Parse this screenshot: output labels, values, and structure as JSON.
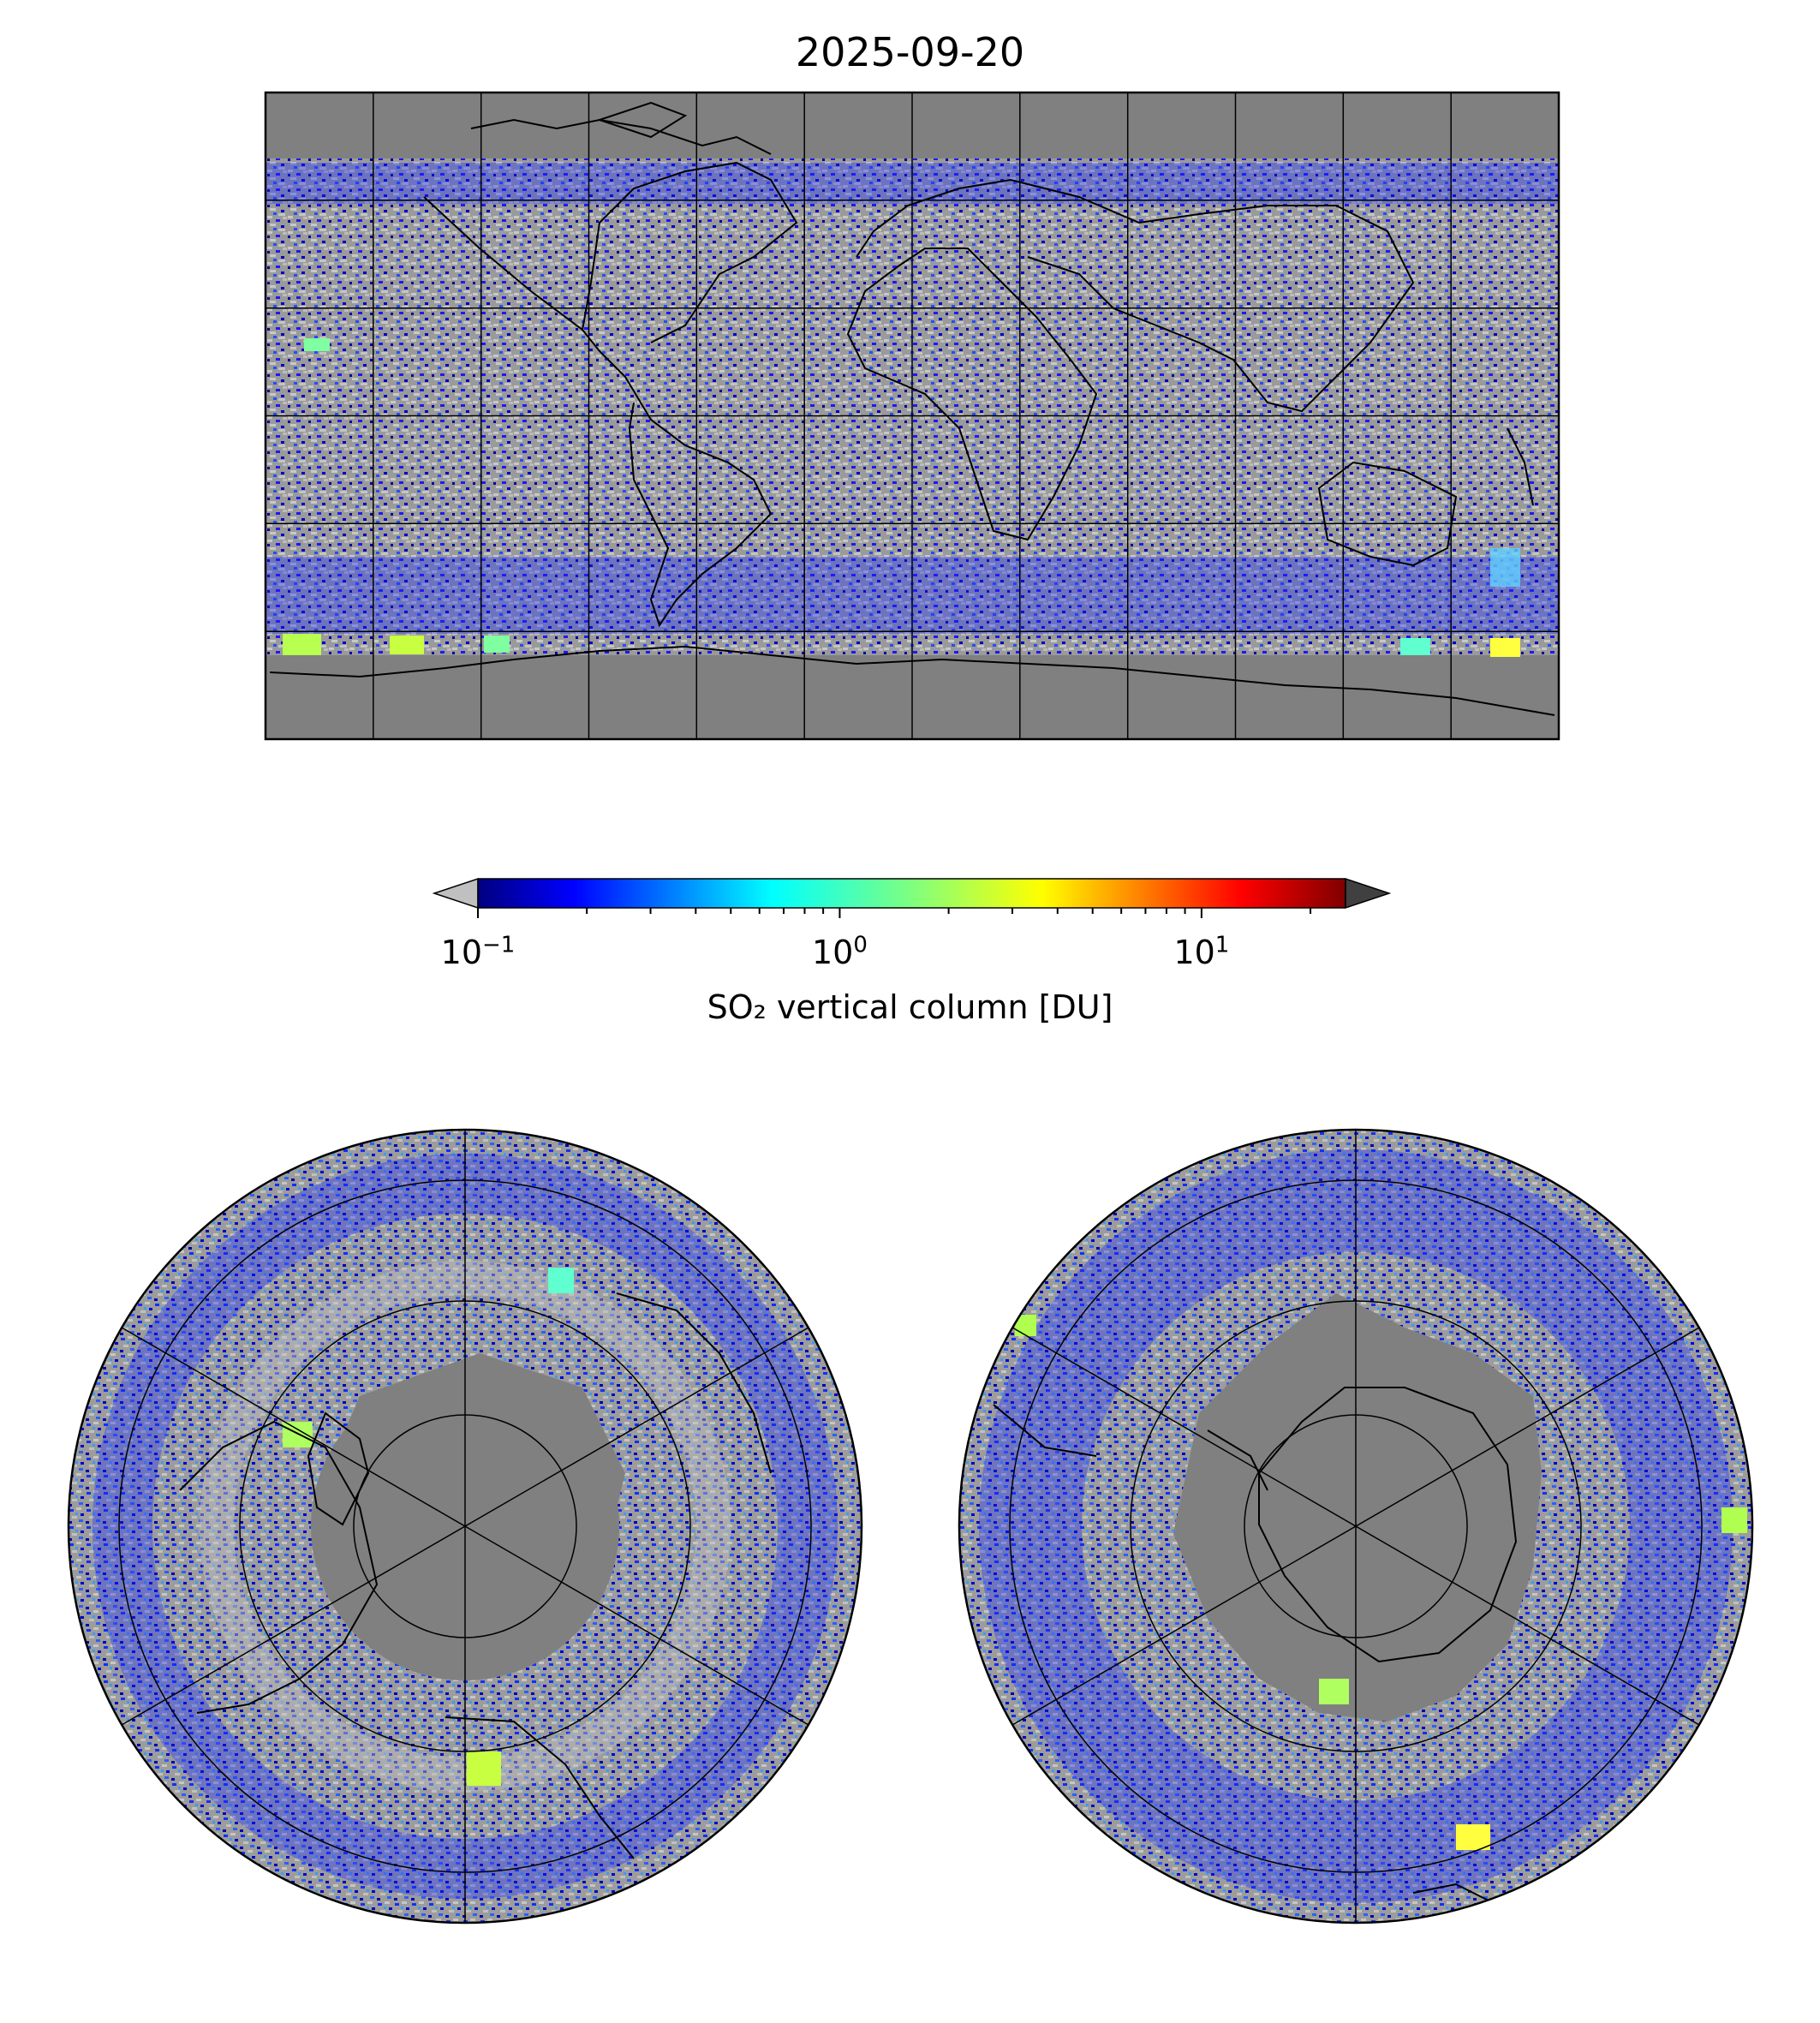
{
  "title": "2025-09-20",
  "colorbar": {
    "label": "SO₂ vertical column [DU]",
    "scale": "log",
    "vmin": 0.1,
    "vmax": 25,
    "extend": "both",
    "under_color": "#c0c0c0",
    "over_color": "#404040",
    "colormap": "jet",
    "ticks": [
      {
        "value": 0.1,
        "base": "10",
        "exp": "−1"
      },
      {
        "value": 1,
        "base": "10",
        "exp": "0"
      },
      {
        "value": 10,
        "base": "10",
        "exp": "1"
      }
    ]
  },
  "maps": [
    {
      "name": "global",
      "projection": "plate-carree",
      "lon_range": [
        -180,
        180
      ],
      "lat_range": [
        -90,
        90
      ],
      "gridline_lon_step": 30,
      "gridline_lat_step": 30
    },
    {
      "name": "north-polar",
      "projection": "north-polar-stereographic"
    },
    {
      "name": "south-polar",
      "projection": "south-polar-stereographic"
    }
  ],
  "colors": {
    "no_data": "#808080",
    "below_range": "#c0c0c0",
    "coastline": "#000000",
    "gridline": "#000000"
  }
}
